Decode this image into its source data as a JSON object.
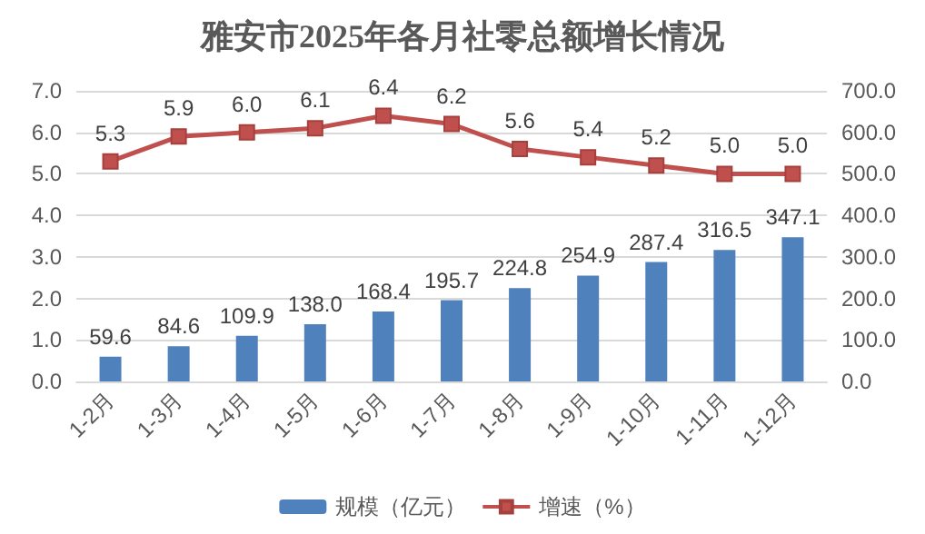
{
  "chart_data": {
    "type": "bar",
    "title": "雅安市2025年各月社零总额增长情况",
    "categories": [
      "1-2月",
      "1-3月",
      "1-4月",
      "1-5月",
      "1-6月",
      "1-7月",
      "1-8月",
      "1-9月",
      "1-10月",
      "1-11月",
      "1-12月"
    ],
    "series": [
      {
        "name": "规模（亿元）",
        "axis": "y2",
        "color": "#4f81bd",
        "values": [
          59.6,
          84.6,
          109.9,
          138.0,
          168.4,
          195.7,
          224.8,
          254.9,
          287.4,
          316.5,
          347.1
        ],
        "value_labels": [
          "59.6",
          "84.6",
          "109.9",
          "138.0",
          "168.4",
          "195.7",
          "224.8",
          "254.9",
          "287.4",
          "316.5",
          "347.1"
        ]
      },
      {
        "name": "增速（%）",
        "type": "line",
        "color": "#c0504d",
        "marker": "square",
        "values": [
          5.3,
          5.9,
          6.0,
          6.1,
          6.4,
          6.2,
          5.6,
          5.4,
          5.2,
          5.0,
          5.0
        ],
        "value_labels": [
          "5.3",
          "5.9",
          "6.0",
          "6.1",
          "6.4",
          "6.2",
          "5.6",
          "5.4",
          "5.2",
          "5.0",
          "5.0"
        ]
      }
    ],
    "ylim": [
      0,
      7
    ],
    "yticks": [
      {
        "value": 0,
        "label": "0.0"
      },
      {
        "value": 1,
        "label": "1.0"
      },
      {
        "value": 2,
        "label": "2.0"
      },
      {
        "value": 3,
        "label": "3.0"
      },
      {
        "value": 4,
        "label": "4.0"
      },
      {
        "value": 5,
        "label": "5.0"
      },
      {
        "value": 6,
        "label": "6.0"
      },
      {
        "value": 7,
        "label": "7.0"
      }
    ],
    "y2lim": [
      0,
      700
    ],
    "y2ticks": [
      {
        "value": 0,
        "label": "0.0"
      },
      {
        "value": 100,
        "label": "100.0"
      },
      {
        "value": 200,
        "label": "200.0"
      },
      {
        "value": 300,
        "label": "300.0"
      },
      {
        "value": 400,
        "label": "400.0"
      },
      {
        "value": 500,
        "label": "500.0"
      },
      {
        "value": 600,
        "label": "600.0"
      },
      {
        "value": 700,
        "label": "700.0"
      }
    ],
    "grid": "y",
    "legend": "bottom"
  }
}
